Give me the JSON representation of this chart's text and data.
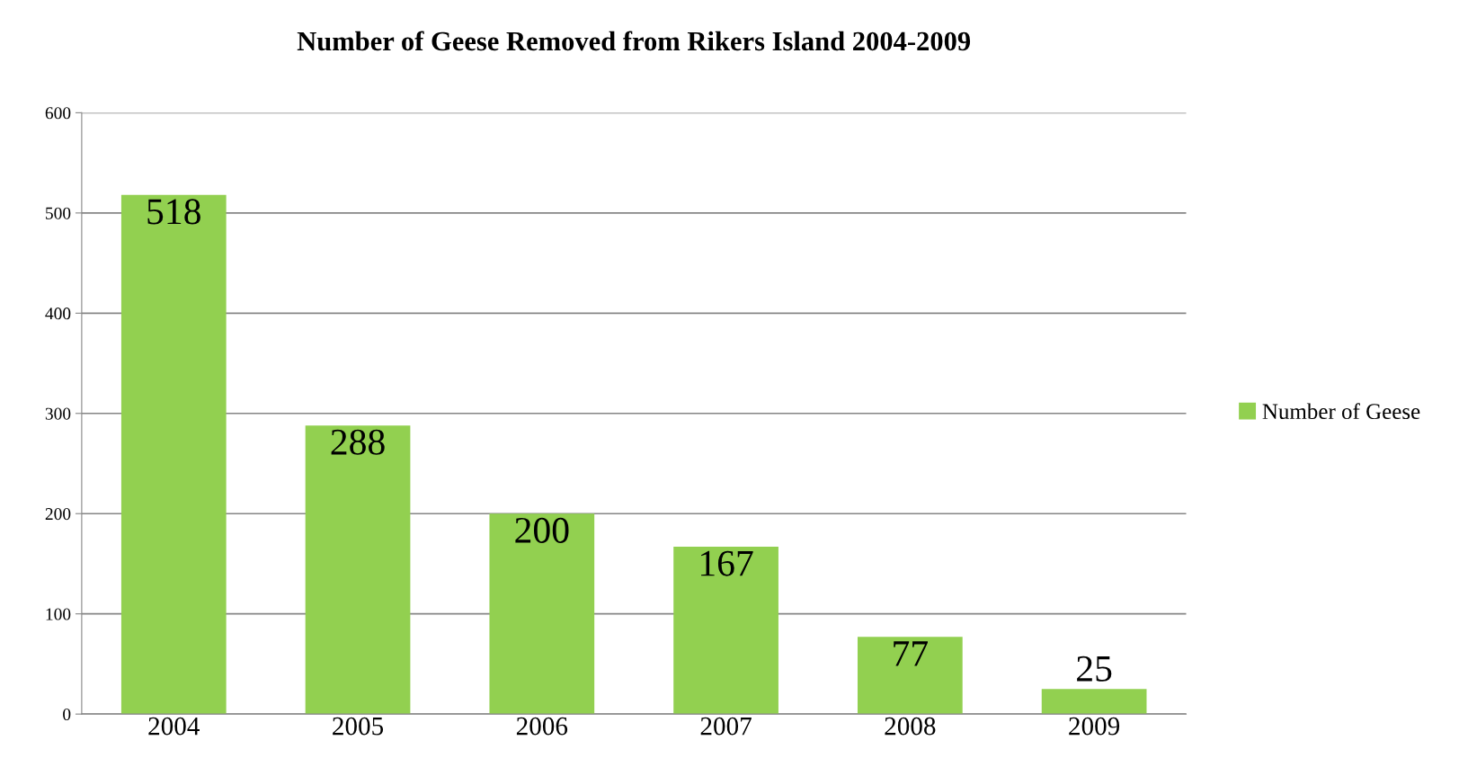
{
  "chart_data": {
    "type": "bar",
    "title": "Number of Geese Removed from Rikers Island 2004-2009",
    "categories": [
      "2004",
      "2005",
      "2006",
      "2007",
      "2008",
      "2009"
    ],
    "series": [
      {
        "name": "Number of Geese",
        "color": "#92d050",
        "values": [
          518,
          288,
          200,
          167,
          77,
          25
        ]
      }
    ],
    "ylim": [
      0,
      600
    ],
    "yticks": [
      0,
      100,
      200,
      300,
      400,
      500,
      600
    ],
    "grid": "y",
    "legend": "right",
    "data_labels": true
  }
}
